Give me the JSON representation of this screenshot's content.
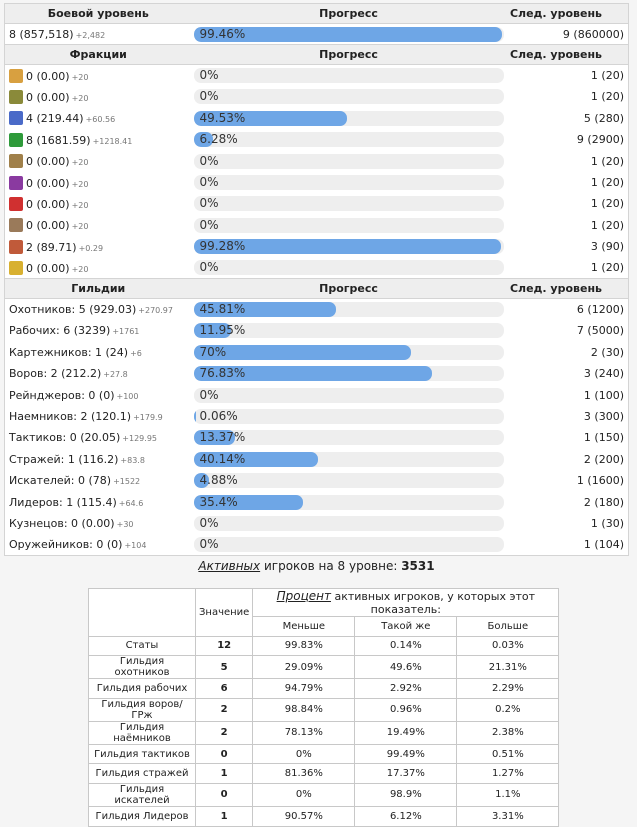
{
  "combat": {
    "header": {
      "label": "Боевой уровень",
      "progress": "Прогресс",
      "next": "След. уровень"
    },
    "value": "8 (857,518)",
    "delta": "+2,482",
    "pct": "99.46%",
    "fill": 99.46,
    "next": "9 (860000)"
  },
  "factions": {
    "header": {
      "label": "Фракции",
      "progress": "Прогресс",
      "next": "След. уровень"
    },
    "rows": [
      {
        "icon": "cross-icon",
        "color": "#d8a040",
        "value": "0 (0.00)",
        "delta": "+20",
        "pct": "0%",
        "fill": 0,
        "next": "1 (20)"
      },
      {
        "icon": "mask-icon",
        "color": "#8a8a3a",
        "value": "0 (0.00)",
        "delta": "+20",
        "pct": "0%",
        "fill": 0,
        "next": "1 (20)"
      },
      {
        "icon": "wizard-hat-icon",
        "color": "#4a6ac8",
        "value": "4 (219.44)",
        "delta": "+60.56",
        "pct": "49.53%",
        "fill": 49.53,
        "next": "5 (280)"
      },
      {
        "icon": "leaf-icon",
        "color": "#2e9a3a",
        "value": "8 (1681.59)",
        "delta": "+1218.41",
        "pct": "6.28%",
        "fill": 6.28,
        "next": "9 (2900)"
      },
      {
        "icon": "sword-icon",
        "color": "#a0804a",
        "value": "0 (0.00)",
        "delta": "+20",
        "pct": "0%",
        "fill": 0,
        "next": "1 (20)"
      },
      {
        "icon": "demon-icon",
        "color": "#8a3aa0",
        "value": "0 (0.00)",
        "delta": "+20",
        "pct": "0%",
        "fill": 0,
        "next": "1 (20)"
      },
      {
        "icon": "crossed-axes-icon",
        "color": "#d03030",
        "value": "0 (0.00)",
        "delta": "+20",
        "pct": "0%",
        "fill": 0,
        "next": "1 (20)"
      },
      {
        "icon": "hammer-icon",
        "color": "#9a7a5a",
        "value": "0 (0.00)",
        "delta": "+20",
        "pct": "0%",
        "fill": 0,
        "next": "1 (20)"
      },
      {
        "icon": "knight-helmet-icon",
        "color": "#c05a3a",
        "value": "2 (89.71)",
        "delta": "+0.29",
        "pct": "99.28%",
        "fill": 99.28,
        "next": "3 (90)"
      },
      {
        "icon": "eye-icon",
        "color": "#d8b030",
        "value": "0 (0.00)",
        "delta": "+20",
        "pct": "0%",
        "fill": 0,
        "next": "1 (20)"
      }
    ]
  },
  "guilds": {
    "header": {
      "label": "Гильдии",
      "progress": "Прогресс",
      "next": "След. уровень"
    },
    "rows": [
      {
        "value": "Охотников: 5 (929.03)",
        "delta": "+270.97",
        "pct": "45.81%",
        "fill": 45.81,
        "next": "6 (1200)"
      },
      {
        "value": "Рабочих: 6 (3239)",
        "delta": "+1761",
        "pct": "11.95%",
        "fill": 11.95,
        "next": "7 (5000)"
      },
      {
        "value": "Картежников: 1 (24)",
        "delta": "+6",
        "pct": "70%",
        "fill": 70,
        "next": "2 (30)"
      },
      {
        "value": "Воров: 2 (212.2)",
        "delta": "+27.8",
        "pct": "76.83%",
        "fill": 76.83,
        "next": "3 (240)"
      },
      {
        "value": "Рейнджеров: 0 (0)",
        "delta": "+100",
        "pct": "0%",
        "fill": 0,
        "next": "1 (100)"
      },
      {
        "value": "Наемников: 2 (120.1)",
        "delta": "+179.9",
        "pct": "0.06%",
        "fill": 0.06,
        "next": "3 (300)"
      },
      {
        "value": "Тактиков: 0 (20.05)",
        "delta": "+129.95",
        "pct": "13.37%",
        "fill": 13.37,
        "next": "1 (150)"
      },
      {
        "value": "Стражей: 1 (116.2)",
        "delta": "+83.8",
        "pct": "40.14%",
        "fill": 40.14,
        "next": "2 (200)"
      },
      {
        "value": "Искателей: 0 (78)",
        "delta": "+1522",
        "pct": "4.88%",
        "fill": 4.88,
        "next": "1 (1600)"
      },
      {
        "value": "Лидеров: 1 (115.4)",
        "delta": "+64.6",
        "pct": "35.4%",
        "fill": 35.4,
        "next": "2 (180)"
      },
      {
        "value": "Кузнецов: 0 (0.00)",
        "delta": "+30",
        "pct": "0%",
        "fill": 0,
        "next": "1 (30)"
      },
      {
        "value": "Оружейников: 0 (0)",
        "delta": "+104",
        "pct": "0%",
        "fill": 0,
        "next": "1 (104)"
      }
    ]
  },
  "active": {
    "em": "Активных",
    "text": "игроков на 8 уровне:",
    "count": "3531"
  },
  "stats": {
    "value_header": "Значение",
    "percent_em": "Процент",
    "percent_text": "активных игроков, у которых этот показатель:",
    "cols": [
      "Меньше",
      "Такой же",
      "Больше"
    ],
    "rows": [
      {
        "label": "Статы",
        "value": "12",
        "less": "99.83%",
        "same": "0.14%",
        "more": "0.03%"
      },
      {
        "label": "Гильдия охотников",
        "value": "5",
        "less": "29.09%",
        "same": "49.6%",
        "more": "21.31%"
      },
      {
        "label": "Гильдия рабочих",
        "value": "6",
        "less": "94.79%",
        "same": "2.92%",
        "more": "2.29%"
      },
      {
        "label": "Гильдия воров/ГРж",
        "value": "2",
        "less": "98.84%",
        "same": "0.96%",
        "more": "0.2%"
      },
      {
        "label": "Гильдия наёмников",
        "value": "2",
        "less": "78.13%",
        "same": "19.49%",
        "more": "2.38%"
      },
      {
        "label": "Гильдия тактиков",
        "value": "0",
        "less": "0%",
        "same": "99.49%",
        "more": "0.51%"
      },
      {
        "label": "Гильдия стражей",
        "value": "1",
        "less": "81.36%",
        "same": "17.37%",
        "more": "1.27%"
      },
      {
        "label": "Гильдия искателей",
        "value": "0",
        "less": "0%",
        "same": "98.9%",
        "more": "1.1%"
      },
      {
        "label": "Гильдия Лидеров",
        "value": "1",
        "less": "90.57%",
        "same": "6.12%",
        "more": "3.31%"
      }
    ]
  }
}
